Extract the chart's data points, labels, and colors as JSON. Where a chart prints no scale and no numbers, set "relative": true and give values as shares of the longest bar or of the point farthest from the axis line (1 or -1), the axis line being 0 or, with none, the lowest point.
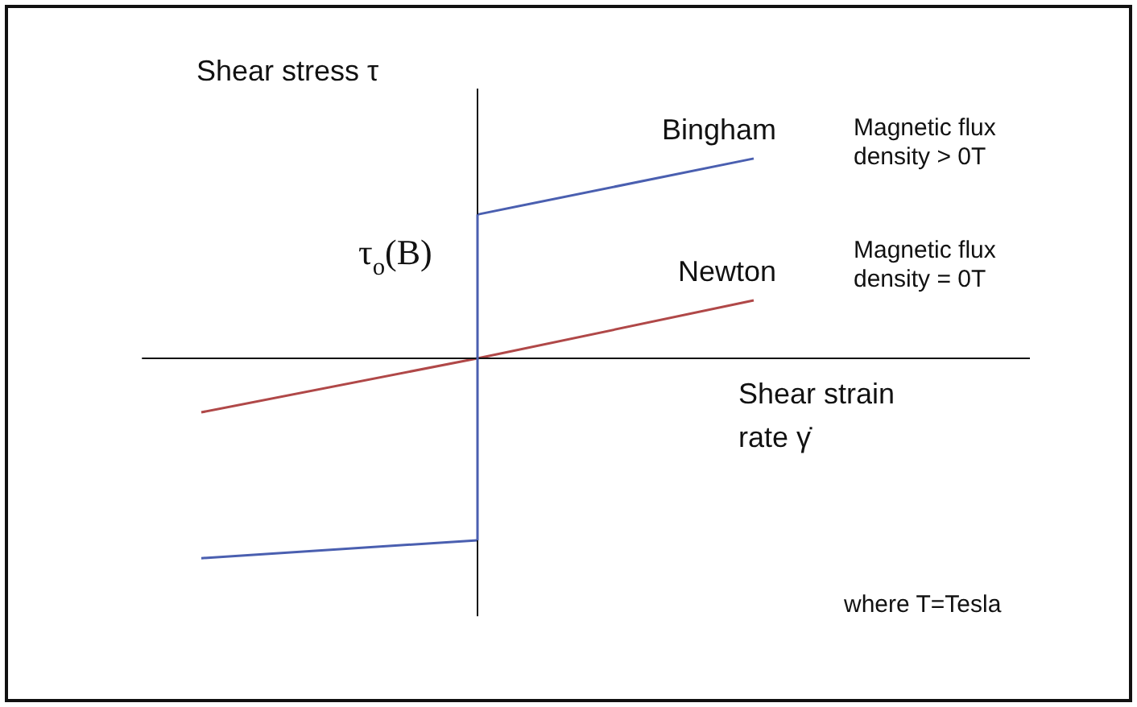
{
  "chart_data": {
    "type": "line",
    "relative": true,
    "ylabel": "Shear stress τ",
    "xlabel": "Shear strain rate γ̇",
    "legend": false,
    "marker": "none",
    "categories": [
      null,
      null,
      null
    ],
    "series": [
      {
        "color": "#4a5fb0",
        "values": [
          -1,
          -0.91,
          null
        ]
      },
      {
        "name": "Bingham",
        "color": "#4a5fb0",
        "values": [
          null,
          0.72,
          1
        ]
      },
      {
        "name": "Newton",
        "color": "#b04848",
        "values": [
          -0.27,
          0,
          0.29
        ]
      }
    ],
    "annotations": [
      "τ$_{o}$(B)",
      "Magnetic flux density > 0T",
      "Magnetic flux density = 0T",
      "where T=Tesla"
    ]
  }
}
